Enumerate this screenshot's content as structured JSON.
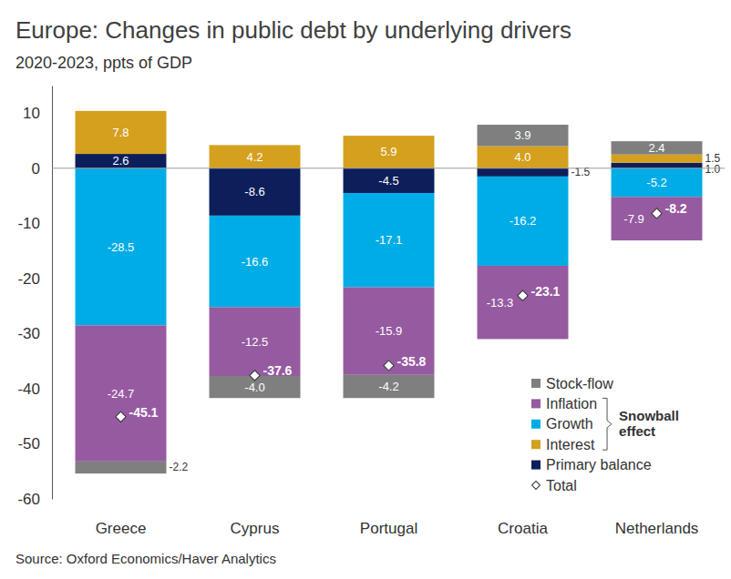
{
  "chart_data": {
    "type": "bar",
    "title": "Europe: Changes in public debt by underlying drivers",
    "subtitle": "2020-2023, ppts of GDP",
    "source": "Source: Oxford Economics/Haver Analytics",
    "categories": [
      "Greece",
      "Cyprus",
      "Portugal",
      "Croatia",
      "Netherlands"
    ],
    "series": [
      {
        "name": "Primary balance",
        "type": "bar",
        "color": "#0c1f5b",
        "values": [
          2.6,
          -8.6,
          -4.5,
          -1.5,
          1.0
        ],
        "value_labels": [
          "2.6",
          "-8.6",
          "-4.5",
          "-1.5",
          "1.0"
        ]
      },
      {
        "name": "Interest",
        "type": "bar",
        "color": "#d4a01e",
        "values": [
          7.8,
          4.2,
          5.9,
          4.0,
          1.5
        ],
        "value_labels": [
          "7.8",
          "4.2",
          "5.9",
          "4.0",
          "1.5"
        ]
      },
      {
        "name": "Growth",
        "type": "bar",
        "color": "#00ace6",
        "values": [
          -28.5,
          -16.6,
          -17.1,
          -16.2,
          -5.2
        ],
        "value_labels": [
          "-28.5",
          "-16.6",
          "-17.1",
          "-16.2",
          "-5.2"
        ]
      },
      {
        "name": "Inflation",
        "type": "bar",
        "color": "#965aa0",
        "values": [
          -24.7,
          -12.5,
          -15.9,
          -13.3,
          -7.9
        ],
        "value_labels": [
          "-24.7",
          "-12.5",
          "-15.9",
          "-13.3",
          "-7.9"
        ]
      },
      {
        "name": "Stock-flow",
        "type": "bar",
        "color": "#7f7f7f",
        "values": [
          -2.2,
          -4.0,
          -4.2,
          3.9,
          2.4
        ],
        "value_labels": [
          "-2.2",
          "-4.0",
          "-4.2",
          "3.9",
          "2.4"
        ]
      },
      {
        "name": "Total",
        "type": "scatter",
        "marker": "diamond",
        "color": "#ffffff",
        "values": [
          -45.1,
          -37.6,
          -35.8,
          -23.1,
          -8.2
        ],
        "value_labels": [
          "-45.1",
          "-37.6",
          "-35.8",
          "-23.1",
          "-8.2"
        ]
      }
    ],
    "ylim": [
      -60,
      15
    ],
    "yticks": [
      -60,
      -50,
      -40,
      -30,
      -20,
      -10,
      0,
      10
    ],
    "stacked": true,
    "data_labels": true,
    "legend": "lower right",
    "grid": false,
    "annotations": [
      {
        "text": "Snowball effect"
      }
    ]
  }
}
